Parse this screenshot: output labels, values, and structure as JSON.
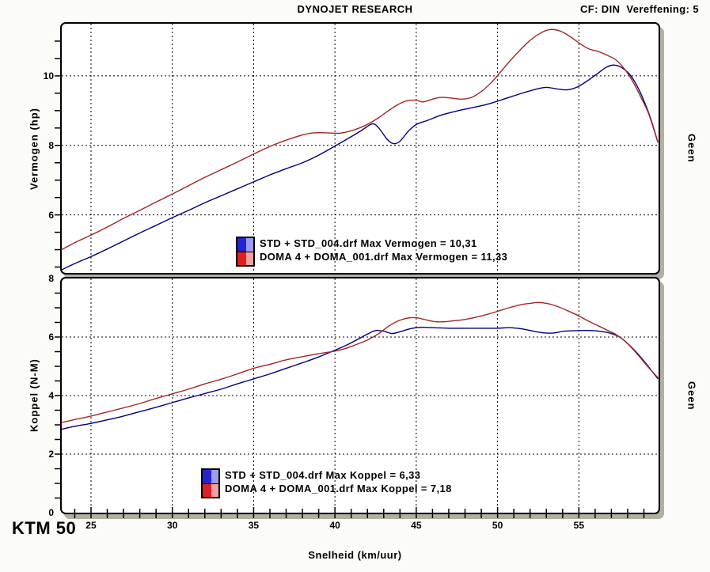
{
  "header": {
    "title": "DYNOJET RESEARCH",
    "info": "CF: DIN  Vereffening: 5"
  },
  "branding": {
    "model": "KTM 50"
  },
  "colors": {
    "std_line": "#00007f",
    "doma_line": "#a52525",
    "std_swatch": "#2424d0",
    "std_swatch_light": "#9c9cf0",
    "doma_swatch": "#e02020",
    "doma_swatch_light": "#f5a0a0",
    "shadow": "#b3b0a2",
    "grid": "#000000"
  },
  "chart_data": {
    "type": "line",
    "x_axis": {
      "label": "Snelheid (km/uur)",
      "min": 23.2,
      "max": 59.9,
      "ticks": [
        25,
        30,
        35,
        40,
        45,
        50,
        55
      ],
      "minor_step": 1
    },
    "charts": [
      {
        "id": "vermogen",
        "ylabel": "Vermogen (hp)",
        "right_label": "Geen",
        "ymin": 4.33,
        "ymax": 11.5,
        "y_grid": [
          6,
          8,
          10
        ],
        "y_tick_labels": [
          6,
          8,
          10
        ],
        "y_minor_step": 0.5,
        "show_x_tick_labels": false,
        "show_x_ticks": false,
        "legend": [
          {
            "label": "STD + STD_004.drf Max Vermogen = 10,31"
          },
          {
            "label": "DOMA 4 + DOMA_001.drf Max Vermogen = 11,33"
          }
        ],
        "series": [
          {
            "name": "STD + STD_004.drf",
            "max": "10,31",
            "color": "#00007f",
            "points": [
              [
                23.2,
                4.42
              ],
              [
                24,
                4.6
              ],
              [
                25,
                4.8
              ],
              [
                26,
                5.02
              ],
              [
                27,
                5.25
              ],
              [
                28,
                5.48
              ],
              [
                29,
                5.7
              ],
              [
                30,
                5.92
              ],
              [
                31,
                6.13
              ],
              [
                32,
                6.35
              ],
              [
                33,
                6.55
              ],
              [
                34,
                6.75
              ],
              [
                35,
                6.95
              ],
              [
                36,
                7.15
              ],
              [
                37,
                7.33
              ],
              [
                38,
                7.5
              ],
              [
                39,
                7.72
              ],
              [
                40,
                7.98
              ],
              [
                41,
                8.25
              ],
              [
                41.7,
                8.45
              ],
              [
                42.3,
                8.62
              ],
              [
                42.7,
                8.5
              ],
              [
                43.2,
                8.18
              ],
              [
                43.6,
                8.05
              ],
              [
                44,
                8.12
              ],
              [
                44.5,
                8.4
              ],
              [
                45,
                8.6
              ],
              [
                45.7,
                8.72
              ],
              [
                46.6,
                8.88
              ],
              [
                47.6,
                9.0
              ],
              [
                48.6,
                9.1
              ],
              [
                49.5,
                9.2
              ],
              [
                50.5,
                9.35
              ],
              [
                51.5,
                9.5
              ],
              [
                52.4,
                9.62
              ],
              [
                53,
                9.67
              ],
              [
                53.7,
                9.62
              ],
              [
                54.3,
                9.6
              ],
              [
                54.9,
                9.68
              ],
              [
                55.5,
                9.85
              ],
              [
                56.1,
                10.05
              ],
              [
                56.7,
                10.25
              ],
              [
                57.2,
                10.31
              ],
              [
                57.7,
                10.22
              ],
              [
                58.2,
                10.0
              ],
              [
                58.7,
                9.6
              ],
              [
                59.2,
                9.05
              ],
              [
                59.5,
                8.65
              ],
              [
                59.85,
                8.1
              ]
            ]
          },
          {
            "name": "DOMA 4 + DOMA_001.drf",
            "max": "11,33",
            "color": "#a52525",
            "points": [
              [
                23.2,
                5.0
              ],
              [
                24,
                5.2
              ],
              [
                25,
                5.42
              ],
              [
                26,
                5.65
              ],
              [
                27,
                5.9
              ],
              [
                28,
                6.13
              ],
              [
                29,
                6.37
              ],
              [
                30,
                6.6
              ],
              [
                31,
                6.84
              ],
              [
                32,
                7.08
              ],
              [
                33,
                7.3
              ],
              [
                34,
                7.52
              ],
              [
                35,
                7.75
              ],
              [
                36,
                7.97
              ],
              [
                37,
                8.15
              ],
              [
                38,
                8.3
              ],
              [
                38.7,
                8.36
              ],
              [
                39.5,
                8.36
              ],
              [
                40.3,
                8.35
              ],
              [
                41,
                8.42
              ],
              [
                41.6,
                8.52
              ],
              [
                42.1,
                8.63
              ],
              [
                42.7,
                8.8
              ],
              [
                43.3,
                9.0
              ],
              [
                43.9,
                9.18
              ],
              [
                44.4,
                9.28
              ],
              [
                45,
                9.3
              ],
              [
                45.4,
                9.25
              ],
              [
                46,
                9.33
              ],
              [
                46.5,
                9.38
              ],
              [
                47.2,
                9.36
              ],
              [
                47.8,
                9.33
              ],
              [
                48.4,
                9.38
              ],
              [
                49,
                9.55
              ],
              [
                49.6,
                9.8
              ],
              [
                50.2,
                10.12
              ],
              [
                50.8,
                10.45
              ],
              [
                51.4,
                10.75
              ],
              [
                52,
                11.02
              ],
              [
                52.6,
                11.22
              ],
              [
                53.2,
                11.33
              ],
              [
                53.8,
                11.3
              ],
              [
                54.4,
                11.15
              ],
              [
                55,
                10.95
              ],
              [
                55.6,
                10.78
              ],
              [
                56.2,
                10.7
              ],
              [
                56.8,
                10.58
              ],
              [
                57.3,
                10.45
              ],
              [
                57.8,
                10.2
              ],
              [
                58.3,
                9.85
              ],
              [
                58.8,
                9.4
              ],
              [
                59.3,
                8.9
              ],
              [
                59.85,
                8.1
              ]
            ]
          }
        ]
      },
      {
        "id": "koppel",
        "ylabel": "Koppel (N-M)",
        "right_label": "Geen",
        "ymin": 0,
        "ymax": 8,
        "y_grid": [
          2,
          4,
          6
        ],
        "y_tick_labels": [
          0,
          2,
          4,
          6,
          8
        ],
        "y_minor_step": 0.5,
        "show_x_tick_labels": true,
        "show_x_ticks": true,
        "legend": [
          {
            "label": "STD + STD_004.drf Max Koppel = 6,33"
          },
          {
            "label": "DOMA 4 + DOMA_001.drf Max Koppel = 7,18"
          }
        ],
        "series": [
          {
            "name": "STD + STD_004.drf",
            "max": "6,33",
            "color": "#00007f",
            "points": [
              [
                23.2,
                2.85
              ],
              [
                24,
                2.95
              ],
              [
                25,
                3.05
              ],
              [
                26,
                3.17
              ],
              [
                27,
                3.3
              ],
              [
                28,
                3.45
              ],
              [
                29,
                3.6
              ],
              [
                30,
                3.76
              ],
              [
                31,
                3.92
              ],
              [
                32,
                4.07
              ],
              [
                33,
                4.22
              ],
              [
                34,
                4.4
              ],
              [
                35,
                4.57
              ],
              [
                36,
                4.74
              ],
              [
                37,
                4.93
              ],
              [
                38,
                5.12
              ],
              [
                39,
                5.32
              ],
              [
                40,
                5.55
              ],
              [
                40.7,
                5.72
              ],
              [
                41.4,
                5.92
              ],
              [
                42,
                6.1
              ],
              [
                42.5,
                6.22
              ],
              [
                43,
                6.2
              ],
              [
                43.5,
                6.12
              ],
              [
                44,
                6.18
              ],
              [
                44.6,
                6.28
              ],
              [
                45.2,
                6.33
              ],
              [
                46,
                6.32
              ],
              [
                47,
                6.3
              ],
              [
                48,
                6.3
              ],
              [
                49,
                6.3
              ],
              [
                50,
                6.3
              ],
              [
                50.7,
                6.32
              ],
              [
                51.5,
                6.28
              ],
              [
                52.2,
                6.2
              ],
              [
                52.9,
                6.14
              ],
              [
                53.5,
                6.14
              ],
              [
                54.1,
                6.2
              ],
              [
                55,
                6.22
              ],
              [
                55.8,
                6.22
              ],
              [
                56.5,
                6.18
              ],
              [
                57,
                6.12
              ],
              [
                57.5,
                6.0
              ],
              [
                58,
                5.78
              ],
              [
                58.5,
                5.5
              ],
              [
                59,
                5.18
              ],
              [
                59.4,
                4.9
              ],
              [
                59.85,
                4.58
              ]
            ]
          },
          {
            "name": "DOMA 4 + DOMA_001.drf",
            "max": "7,18",
            "color": "#a52525",
            "points": [
              [
                23.2,
                3.08
              ],
              [
                24,
                3.18
              ],
              [
                25,
                3.3
              ],
              [
                26,
                3.44
              ],
              [
                27,
                3.58
              ],
              [
                28,
                3.73
              ],
              [
                29,
                3.9
              ],
              [
                30,
                4.06
              ],
              [
                31,
                4.22
              ],
              [
                32,
                4.4
              ],
              [
                33,
                4.56
              ],
              [
                34,
                4.74
              ],
              [
                35,
                4.93
              ],
              [
                36,
                5.07
              ],
              [
                37,
                5.22
              ],
              [
                38,
                5.33
              ],
              [
                39,
                5.43
              ],
              [
                40,
                5.52
              ],
              [
                40.6,
                5.6
              ],
              [
                41.2,
                5.72
              ],
              [
                42,
                5.9
              ],
              [
                42.7,
                6.12
              ],
              [
                43.3,
                6.37
              ],
              [
                43.9,
                6.55
              ],
              [
                44.5,
                6.65
              ],
              [
                45,
                6.66
              ],
              [
                45.5,
                6.6
              ],
              [
                46.1,
                6.53
              ],
              [
                46.7,
                6.52
              ],
              [
                47.4,
                6.56
              ],
              [
                48,
                6.6
              ],
              [
                48.7,
                6.68
              ],
              [
                49.4,
                6.78
              ],
              [
                50,
                6.88
              ],
              [
                50.7,
                7.0
              ],
              [
                51.4,
                7.1
              ],
              [
                52,
                7.15
              ],
              [
                52.5,
                7.18
              ],
              [
                53.1,
                7.14
              ],
              [
                53.7,
                7.04
              ],
              [
                54.3,
                6.9
              ],
              [
                55,
                6.72
              ],
              [
                55.6,
                6.54
              ],
              [
                56.2,
                6.38
              ],
              [
                56.8,
                6.22
              ],
              [
                57.3,
                6.08
              ],
              [
                57.8,
                5.88
              ],
              [
                58.3,
                5.6
              ],
              [
                58.8,
                5.28
              ],
              [
                59.3,
                4.95
              ],
              [
                59.85,
                4.62
              ]
            ]
          }
        ]
      }
    ]
  }
}
